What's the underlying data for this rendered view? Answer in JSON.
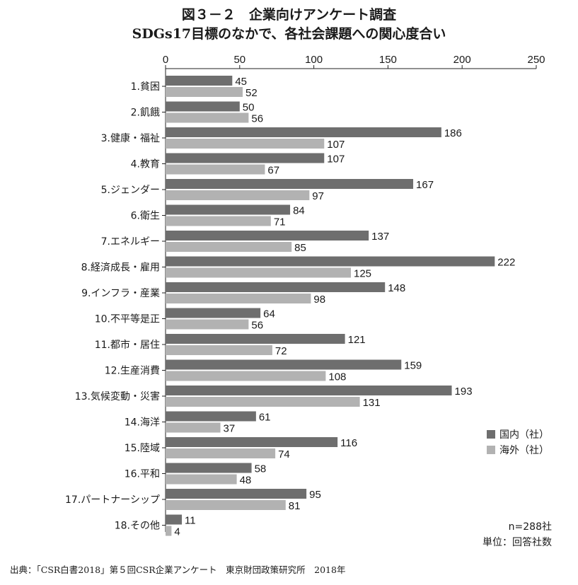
{
  "title": "図３－２　企業向けアンケート調査",
  "subtitle": "SDGs17目標のなかで、各社会課題への関心度合い",
  "chart_data": {
    "type": "bar",
    "orientation": "horizontal",
    "categories": [
      "1.貧困",
      "2.飢餓",
      "3.健康・福祉",
      "4.教育",
      "5.ジェンダー",
      "6.衛生",
      "7.エネルギー",
      "8.経済成長・雇用",
      "9.インフラ・産業",
      "10.不平等是正",
      "11.都市・居住",
      "12.生産消費",
      "13.気候変動・災害",
      "14.海洋",
      "15.陸域",
      "16.平和",
      "17.パートナーシップ",
      "18.その他"
    ],
    "series": [
      {
        "name": "国内（社）",
        "color": "#6e6e6e",
        "values": [
          45,
          50,
          186,
          107,
          167,
          84,
          137,
          222,
          148,
          64,
          121,
          159,
          193,
          61,
          116,
          58,
          95,
          11
        ]
      },
      {
        "name": "海外（社）",
        "color": "#b2b2b2",
        "values": [
          52,
          56,
          107,
          67,
          97,
          71,
          85,
          125,
          98,
          56,
          72,
          108,
          131,
          37,
          74,
          48,
          81,
          4
        ]
      }
    ],
    "xlim": [
      0,
      250
    ],
    "xticks": [
      0,
      50,
      100,
      150,
      200,
      250
    ],
    "grid": false,
    "legend_position": "right"
  },
  "notes": {
    "n": "n=288社",
    "unit": "単位：回答社数"
  },
  "source": "出典：「CSR白書2018」第５回CSR企業アンケート　東京財団政策研究所　2018年"
}
